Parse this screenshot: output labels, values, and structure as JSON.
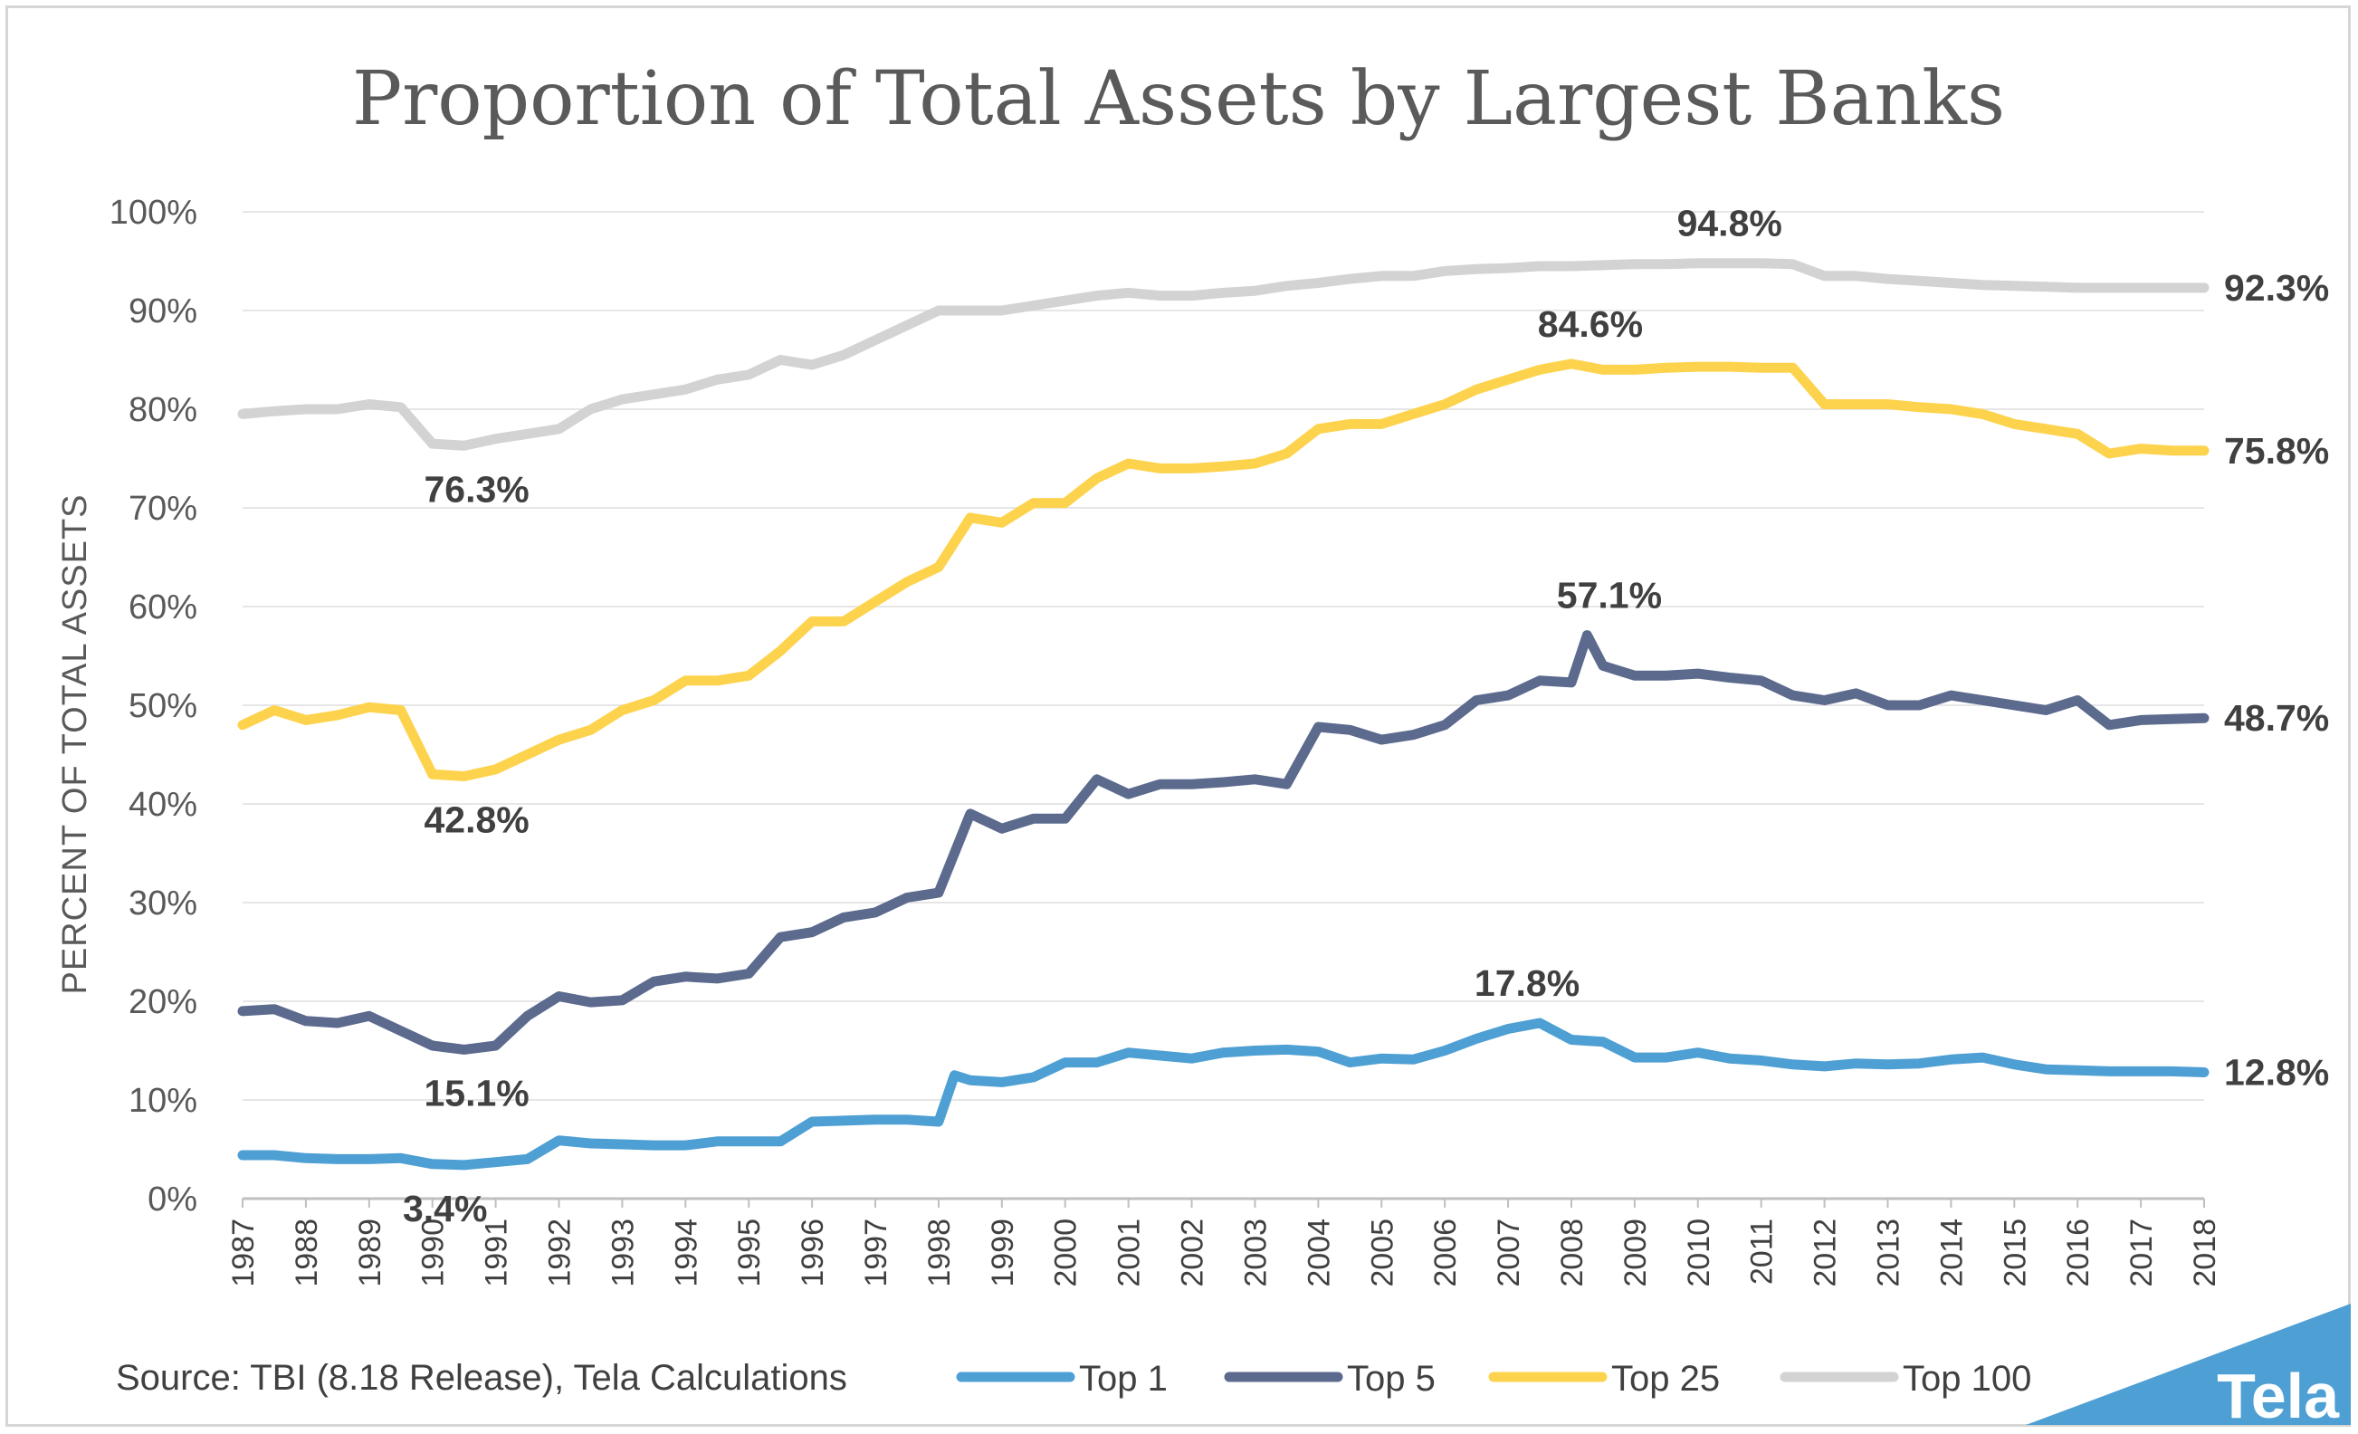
{
  "chart_data": {
    "type": "line",
    "title": "Proportion of Total Assets by Largest Banks",
    "ylabel": "PERCENT OF TOTAL ASSETS",
    "xlabel": "",
    "ylim": [
      0,
      100
    ],
    "y_ticks": [
      "0%",
      "10%",
      "20%",
      "30%",
      "40%",
      "50%",
      "60%",
      "70%",
      "80%",
      "90%",
      "100%"
    ],
    "x_ticks": [
      "1987",
      "1988",
      "1989",
      "1990",
      "1991",
      "1992",
      "1993",
      "1994",
      "1995",
      "1996",
      "1997",
      "1998",
      "1999",
      "2000",
      "2001",
      "2002",
      "2003",
      "2004",
      "2005",
      "2006",
      "2007",
      "2008",
      "2009",
      "2010",
      "2011",
      "2012",
      "2013",
      "2014",
      "2015",
      "2016",
      "2017",
      "2018"
    ],
    "x_range": [
      1987,
      2018
    ],
    "grid": "horizontal",
    "legend_position": "bottom",
    "series": [
      {
        "name": "Top 1",
        "color": "#4e9fd3",
        "points": [
          [
            1987,
            4.4
          ],
          [
            1987.5,
            4.4
          ],
          [
            1988,
            4.1
          ],
          [
            1988.5,
            4.0
          ],
          [
            1989,
            4.0
          ],
          [
            1989.5,
            4.1
          ],
          [
            1990,
            3.5
          ],
          [
            1990.5,
            3.4
          ],
          [
            1991,
            3.7
          ],
          [
            1991.5,
            4.0
          ],
          [
            1992,
            5.9
          ],
          [
            1992.5,
            5.6
          ],
          [
            1993,
            5.5
          ],
          [
            1993.5,
            5.4
          ],
          [
            1994,
            5.4
          ],
          [
            1994.5,
            5.8
          ],
          [
            1995,
            5.8
          ],
          [
            1995.5,
            5.8
          ],
          [
            1996,
            7.8
          ],
          [
            1996.5,
            7.9
          ],
          [
            1997,
            8.0
          ],
          [
            1997.5,
            8.0
          ],
          [
            1998,
            7.8
          ],
          [
            1998.25,
            12.5
          ],
          [
            1998.5,
            12.0
          ],
          [
            1999,
            11.8
          ],
          [
            1999.5,
            12.3
          ],
          [
            2000,
            13.8
          ],
          [
            2000.5,
            13.8
          ],
          [
            2001,
            14.8
          ],
          [
            2001.5,
            14.5
          ],
          [
            2002,
            14.2
          ],
          [
            2002.5,
            14.8
          ],
          [
            2003,
            15.0
          ],
          [
            2003.5,
            15.1
          ],
          [
            2004,
            14.9
          ],
          [
            2004.5,
            13.8
          ],
          [
            2005,
            14.2
          ],
          [
            2005.5,
            14.1
          ],
          [
            2006,
            15.0
          ],
          [
            2006.5,
            16.2
          ],
          [
            2007,
            17.2
          ],
          [
            2007.5,
            17.8
          ],
          [
            2008,
            16.1
          ],
          [
            2008.5,
            15.9
          ],
          [
            2009,
            14.3
          ],
          [
            2009.5,
            14.3
          ],
          [
            2010,
            14.8
          ],
          [
            2010.5,
            14.2
          ],
          [
            2011,
            14.0
          ],
          [
            2011.5,
            13.6
          ],
          [
            2012,
            13.4
          ],
          [
            2012.5,
            13.7
          ],
          [
            2013,
            13.6
          ],
          [
            2013.5,
            13.7
          ],
          [
            2014,
            14.1
          ],
          [
            2014.5,
            14.3
          ],
          [
            2015,
            13.6
          ],
          [
            2015.5,
            13.1
          ],
          [
            2016,
            13.0
          ],
          [
            2016.5,
            12.9
          ],
          [
            2017,
            12.9
          ],
          [
            2017.5,
            12.9
          ],
          [
            2018,
            12.8
          ]
        ]
      },
      {
        "name": "Top 5",
        "color": "#5b6a8d",
        "points": [
          [
            1987,
            19.0
          ],
          [
            1987.5,
            19.2
          ],
          [
            1988,
            18.0
          ],
          [
            1988.5,
            17.8
          ],
          [
            1989,
            18.5
          ],
          [
            1989.5,
            17.0
          ],
          [
            1990,
            15.5
          ],
          [
            1990.5,
            15.1
          ],
          [
            1991,
            15.5
          ],
          [
            1991.5,
            18.5
          ],
          [
            1992,
            20.5
          ],
          [
            1992.5,
            19.9
          ],
          [
            1993,
            20.1
          ],
          [
            1993.5,
            22.0
          ],
          [
            1994,
            22.5
          ],
          [
            1994.5,
            22.3
          ],
          [
            1995,
            22.8
          ],
          [
            1995.5,
            26.5
          ],
          [
            1996,
            27.0
          ],
          [
            1996.5,
            28.5
          ],
          [
            1997,
            29.0
          ],
          [
            1997.5,
            30.5
          ],
          [
            1998,
            31.0
          ],
          [
            1998.5,
            39.0
          ],
          [
            1999,
            37.5
          ],
          [
            1999.5,
            38.5
          ],
          [
            2000,
            38.5
          ],
          [
            2000.5,
            42.5
          ],
          [
            2001,
            41.0
          ],
          [
            2001.5,
            42.0
          ],
          [
            2002,
            42.0
          ],
          [
            2002.5,
            42.2
          ],
          [
            2003,
            42.5
          ],
          [
            2003.5,
            42.0
          ],
          [
            2004,
            47.8
          ],
          [
            2004.5,
            47.5
          ],
          [
            2005,
            46.5
          ],
          [
            2005.5,
            47.0
          ],
          [
            2006,
            48.0
          ],
          [
            2006.5,
            50.5
          ],
          [
            2007,
            51.0
          ],
          [
            2007.5,
            52.5
          ],
          [
            2008,
            52.3
          ],
          [
            2008.25,
            57.1
          ],
          [
            2008.5,
            54.0
          ],
          [
            2009,
            53.0
          ],
          [
            2009.5,
            53.0
          ],
          [
            2010,
            53.2
          ],
          [
            2010.5,
            52.8
          ],
          [
            2011,
            52.5
          ],
          [
            2011.5,
            51.0
          ],
          [
            2012,
            50.5
          ],
          [
            2012.5,
            51.2
          ],
          [
            2013,
            50.0
          ],
          [
            2013.5,
            50.0
          ],
          [
            2014,
            51.0
          ],
          [
            2014.5,
            50.5
          ],
          [
            2015,
            50.0
          ],
          [
            2015.5,
            49.5
          ],
          [
            2016,
            50.5
          ],
          [
            2016.5,
            48.0
          ],
          [
            2017,
            48.5
          ],
          [
            2017.5,
            48.6
          ],
          [
            2018,
            48.7
          ]
        ]
      },
      {
        "name": "Top 25",
        "color": "#fdd34e",
        "points": [
          [
            1987,
            48.0
          ],
          [
            1987.5,
            49.5
          ],
          [
            1988,
            48.5
          ],
          [
            1988.5,
            49.0
          ],
          [
            1989,
            49.8
          ],
          [
            1989.5,
            49.5
          ],
          [
            1990,
            43.0
          ],
          [
            1990.5,
            42.8
          ],
          [
            1991,
            43.5
          ],
          [
            1991.5,
            45.0
          ],
          [
            1992,
            46.5
          ],
          [
            1992.5,
            47.5
          ],
          [
            1993,
            49.5
          ],
          [
            1993.5,
            50.5
          ],
          [
            1994,
            52.5
          ],
          [
            1994.5,
            52.5
          ],
          [
            1995,
            53.0
          ],
          [
            1995.5,
            55.5
          ],
          [
            1996,
            58.5
          ],
          [
            1996.5,
            58.5
          ],
          [
            1997,
            60.5
          ],
          [
            1997.5,
            62.5
          ],
          [
            1998,
            64.0
          ],
          [
            1998.5,
            69.0
          ],
          [
            1999,
            68.5
          ],
          [
            1999.5,
            70.5
          ],
          [
            2000,
            70.5
          ],
          [
            2000.5,
            73.0
          ],
          [
            2001,
            74.5
          ],
          [
            2001.5,
            74.0
          ],
          [
            2002,
            74.0
          ],
          [
            2002.5,
            74.2
          ],
          [
            2003,
            74.5
          ],
          [
            2003.5,
            75.5
          ],
          [
            2004,
            78.0
          ],
          [
            2004.5,
            78.5
          ],
          [
            2005,
            78.5
          ],
          [
            2005.5,
            79.5
          ],
          [
            2006,
            80.5
          ],
          [
            2006.5,
            82.0
          ],
          [
            2007,
            83.0
          ],
          [
            2007.5,
            84.0
          ],
          [
            2008,
            84.6
          ],
          [
            2008.5,
            84.0
          ],
          [
            2009,
            84.0
          ],
          [
            2009.5,
            84.2
          ],
          [
            2010,
            84.3
          ],
          [
            2010.5,
            84.3
          ],
          [
            2011,
            84.2
          ],
          [
            2011.5,
            84.2
          ],
          [
            2012,
            80.5
          ],
          [
            2012.5,
            80.5
          ],
          [
            2013,
            80.5
          ],
          [
            2013.5,
            80.2
          ],
          [
            2014,
            80.0
          ],
          [
            2014.5,
            79.5
          ],
          [
            2015,
            78.5
          ],
          [
            2015.5,
            78.0
          ],
          [
            2016,
            77.5
          ],
          [
            2016.5,
            75.5
          ],
          [
            2017,
            76.0
          ],
          [
            2017.5,
            75.8
          ],
          [
            2018,
            75.8
          ]
        ]
      },
      {
        "name": "Top 100",
        "color": "#d3d3d3",
        "points": [
          [
            1987,
            79.5
          ],
          [
            1987.5,
            79.8
          ],
          [
            1988,
            80.0
          ],
          [
            1988.5,
            80.0
          ],
          [
            1989,
            80.5
          ],
          [
            1989.5,
            80.2
          ],
          [
            1990,
            76.5
          ],
          [
            1990.5,
            76.3
          ],
          [
            1991,
            77.0
          ],
          [
            1991.5,
            77.5
          ],
          [
            1992,
            78.0
          ],
          [
            1992.5,
            80.0
          ],
          [
            1993,
            81.0
          ],
          [
            1993.5,
            81.5
          ],
          [
            1994,
            82.0
          ],
          [
            1994.5,
            83.0
          ],
          [
            1995,
            83.5
          ],
          [
            1995.5,
            85.0
          ],
          [
            1996,
            84.5
          ],
          [
            1996.5,
            85.5
          ],
          [
            1997,
            87.0
          ],
          [
            1997.5,
            88.5
          ],
          [
            1998,
            90.0
          ],
          [
            1998.5,
            90.0
          ],
          [
            1999,
            90.0
          ],
          [
            1999.5,
            90.5
          ],
          [
            2000,
            91.0
          ],
          [
            2000.5,
            91.5
          ],
          [
            2001,
            91.8
          ],
          [
            2001.5,
            91.5
          ],
          [
            2002,
            91.5
          ],
          [
            2002.5,
            91.8
          ],
          [
            2003,
            92.0
          ],
          [
            2003.5,
            92.5
          ],
          [
            2004,
            92.8
          ],
          [
            2004.5,
            93.2
          ],
          [
            2005,
            93.5
          ],
          [
            2005.5,
            93.5
          ],
          [
            2006,
            94.0
          ],
          [
            2006.5,
            94.2
          ],
          [
            2007,
            94.3
          ],
          [
            2007.5,
            94.5
          ],
          [
            2008,
            94.5
          ],
          [
            2008.5,
            94.6
          ],
          [
            2009,
            94.7
          ],
          [
            2009.5,
            94.7
          ],
          [
            2010,
            94.8
          ],
          [
            2010.5,
            94.8
          ],
          [
            2011,
            94.8
          ],
          [
            2011.5,
            94.7
          ],
          [
            2012,
            93.5
          ],
          [
            2012.5,
            93.5
          ],
          [
            2013,
            93.2
          ],
          [
            2013.5,
            93.0
          ],
          [
            2014,
            92.8
          ],
          [
            2014.5,
            92.6
          ],
          [
            2015,
            92.5
          ],
          [
            2015.5,
            92.4
          ],
          [
            2016,
            92.3
          ],
          [
            2016.5,
            92.3
          ],
          [
            2017,
            92.3
          ],
          [
            2017.5,
            92.3
          ],
          [
            2018,
            92.3
          ]
        ]
      }
    ],
    "annotations": [
      {
        "text": "94.8%",
        "x": 2010.5,
        "y": 94.8,
        "pos": "above"
      },
      {
        "text": "92.3%",
        "x": 2018,
        "y": 92.3,
        "pos": "right"
      },
      {
        "text": "76.3%",
        "x": 1990.7,
        "y": 76.3,
        "pos": "below"
      },
      {
        "text": "84.6%",
        "x": 2008.3,
        "y": 84.6,
        "pos": "above"
      },
      {
        "text": "75.8%",
        "x": 2018,
        "y": 75.8,
        "pos": "right"
      },
      {
        "text": "42.8%",
        "x": 1990.7,
        "y": 42.8,
        "pos": "below"
      },
      {
        "text": "57.1%",
        "x": 2008.6,
        "y": 57.1,
        "pos": "above"
      },
      {
        "text": "48.7%",
        "x": 2018,
        "y": 48.7,
        "pos": "right"
      },
      {
        "text": "15.1%",
        "x": 1990.7,
        "y": 15.1,
        "pos": "below"
      },
      {
        "text": "17.8%",
        "x": 2007.3,
        "y": 17.8,
        "pos": "above"
      },
      {
        "text": "12.8%",
        "x": 2018,
        "y": 12.8,
        "pos": "right"
      },
      {
        "text": "3.4%",
        "x": 1990.2,
        "y": 3.4,
        "pos": "below"
      }
    ]
  },
  "footer": {
    "source": "Source: TBI (8.18 Release), Tela Calculations",
    "logo": "Tela",
    "logo_color": "#4e9fd3"
  }
}
